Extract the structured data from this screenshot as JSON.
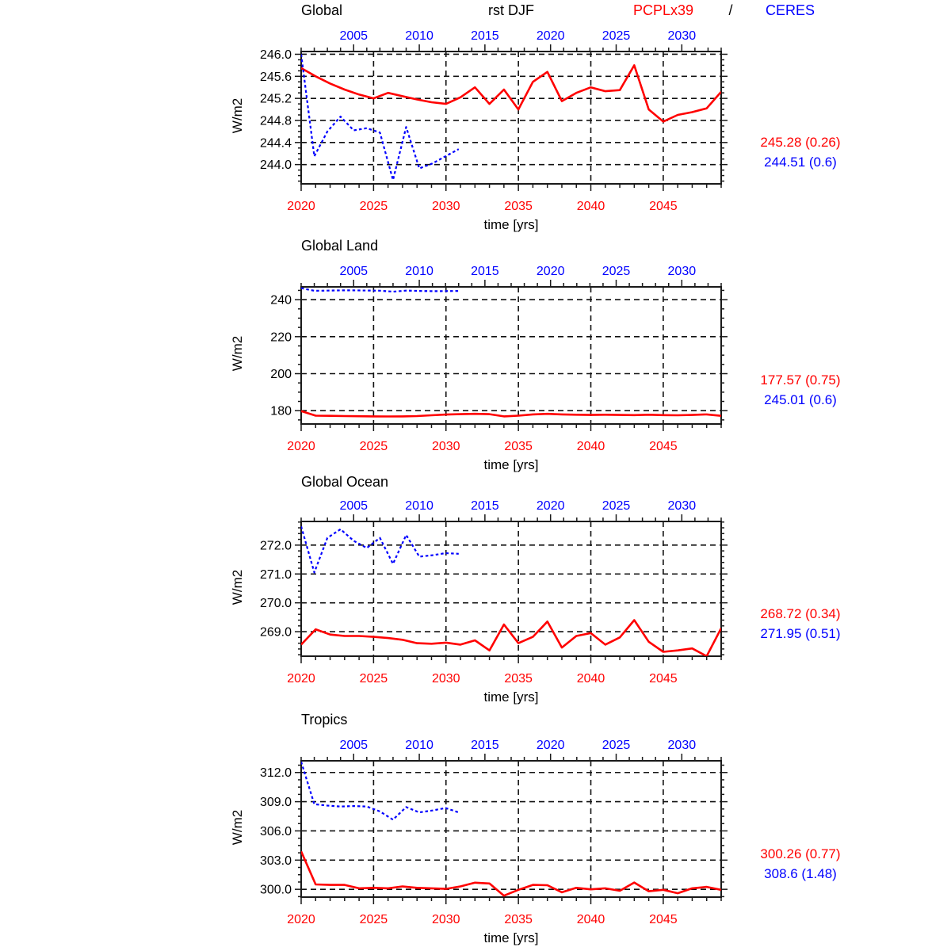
{
  "header": {
    "run_label": "rst DJF",
    "model_name": "PCPLx39",
    "separator": "/",
    "obs_name": "CERES"
  },
  "colors": {
    "model": "#ff0000",
    "obs": "#0000ff",
    "grid": "#111111",
    "frame": "#1a1a1a"
  },
  "axes": {
    "bottom": {
      "range": [
        2020,
        2049
      ],
      "major_ticks": [
        2020,
        2025,
        2030,
        2035,
        2040,
        2045
      ],
      "minor_step": 1,
      "label_color": "#ff0000",
      "label": "time [yrs]"
    },
    "top": {
      "range": [
        2001,
        2033
      ],
      "major_ticks": [
        2005,
        2010,
        2015,
        2020,
        2025,
        2030
      ],
      "minor_step": 1,
      "label_color": "#0000ff"
    }
  },
  "chart_data": [
    {
      "type": "line",
      "title": "Global",
      "ylabel": "W/m2",
      "xlabel": "time [yrs]",
      "ylim": [
        243.65,
        246.05
      ],
      "yticks": [
        246.0,
        245.6,
        245.2,
        244.8,
        244.4,
        244.0
      ],
      "ytick_decimals": 1,
      "y_minor_step": 0.1,
      "grid": true,
      "series": [
        {
          "name": "PCPLx39",
          "color": "#ff0000",
          "line_style": "solid",
          "x_axis": "bottom",
          "x_start": 2020,
          "x_step": 1,
          "values": [
            245.75,
            245.6,
            245.47,
            245.36,
            245.27,
            245.2,
            245.3,
            245.24,
            245.18,
            245.13,
            245.1,
            245.22,
            245.4,
            245.1,
            245.36,
            245.0,
            245.5,
            245.68,
            245.15,
            245.3,
            245.4,
            245.33,
            245.35,
            245.8,
            245.0,
            244.78,
            244.9,
            244.95,
            245.02,
            245.32
          ]
        },
        {
          "name": "CERES",
          "color": "#0000ff",
          "line_style": "dashed",
          "x_axis": "top",
          "x_start": 2001,
          "x_step": 1,
          "values": [
            246.0,
            244.15,
            244.6,
            244.87,
            244.62,
            244.66,
            244.58,
            243.72,
            244.68,
            243.93,
            244.02,
            244.15,
            244.28
          ]
        }
      ],
      "stats": {
        "model": "245.28 (0.26)",
        "obs": "244.51 (0.6)"
      }
    },
    {
      "type": "line",
      "title": "Global Land",
      "ylabel": "W/m2",
      "xlabel": "time [yrs]",
      "ylim": [
        172.8,
        246.9
      ],
      "yticks": [
        240,
        220,
        200,
        180
      ],
      "ytick_decimals": 0,
      "y_minor_step": 5,
      "grid": true,
      "series": [
        {
          "name": "PCPLx39",
          "color": "#ff0000",
          "line_style": "solid",
          "x_axis": "bottom",
          "x_start": 2020,
          "x_step": 1,
          "values": [
            179.8,
            177.3,
            177.2,
            177.1,
            177.0,
            176.9,
            176.85,
            176.9,
            177.1,
            177.5,
            177.9,
            178.1,
            178.3,
            178.1,
            176.9,
            177.3,
            178.0,
            178.3,
            178.0,
            177.8,
            177.7,
            177.8,
            177.7,
            177.6,
            177.8,
            177.6,
            177.5,
            177.7,
            178.0,
            177.2
          ]
        },
        {
          "name": "CERES",
          "color": "#0000ff",
          "line_style": "dashed",
          "x_axis": "top",
          "x_start": 2001,
          "x_step": 1,
          "values": [
            246.2,
            244.8,
            244.9,
            245.0,
            245.0,
            244.95,
            244.85,
            244.35,
            244.9,
            244.7,
            244.6,
            244.65,
            244.7
          ]
        }
      ],
      "stats": {
        "model": "177.57 (0.75)",
        "obs": "245.01 (0.6)"
      }
    },
    {
      "type": "line",
      "title": "Global Ocean",
      "ylabel": "W/m2",
      "xlabel": "time [yrs]",
      "ylim": [
        268.15,
        272.82
      ],
      "yticks": [
        272.0,
        271.0,
        270.0,
        269.0
      ],
      "ytick_decimals": 1,
      "y_minor_step": 0.2,
      "grid": true,
      "series": [
        {
          "name": "PCPLx39",
          "color": "#ff0000",
          "line_style": "solid",
          "x_axis": "bottom",
          "x_start": 2020,
          "x_step": 1,
          "values": [
            268.55,
            269.08,
            268.9,
            268.85,
            268.85,
            268.82,
            268.78,
            268.72,
            268.6,
            268.58,
            268.62,
            268.55,
            268.7,
            268.35,
            269.25,
            268.6,
            268.82,
            269.35,
            268.45,
            268.85,
            268.95,
            268.55,
            268.8,
            269.4,
            268.65,
            268.3,
            268.35,
            268.42,
            268.15,
            269.12
          ]
        },
        {
          "name": "CERES",
          "color": "#0000ff",
          "line_style": "dashed",
          "x_axis": "top",
          "x_start": 2001,
          "x_step": 1,
          "values": [
            272.65,
            271.05,
            272.25,
            272.55,
            272.15,
            271.9,
            272.25,
            271.35,
            272.35,
            271.6,
            271.65,
            271.72,
            271.7
          ]
        }
      ],
      "stats": {
        "model": "268.72 (0.34)",
        "obs": "271.95 (0.51)"
      }
    },
    {
      "type": "line",
      "title": "Tropics",
      "ylabel": "W/m2",
      "xlabel": "time [yrs]",
      "ylim": [
        299.2,
        313.2
      ],
      "yticks": [
        312.0,
        309.0,
        306.0,
        303.0,
        300.0
      ],
      "ytick_decimals": 1,
      "y_minor_step": 0.75,
      "grid": true,
      "series": [
        {
          "name": "PCPLx39",
          "color": "#ff0000",
          "line_style": "solid",
          "x_axis": "bottom",
          "x_start": 2020,
          "x_step": 1,
          "values": [
            303.9,
            300.5,
            300.45,
            300.45,
            300.1,
            300.15,
            300.1,
            300.3,
            300.15,
            300.1,
            300.05,
            300.3,
            300.68,
            300.6,
            299.35,
            299.95,
            300.45,
            300.42,
            299.7,
            300.15,
            300.0,
            300.1,
            299.85,
            300.7,
            299.8,
            299.95,
            299.6,
            300.1,
            300.25,
            299.95
          ]
        },
        {
          "name": "CERES",
          "color": "#0000ff",
          "line_style": "dashed",
          "x_axis": "top",
          "x_start": 2001,
          "x_step": 1,
          "values": [
            313.1,
            308.75,
            308.6,
            308.5,
            308.55,
            308.5,
            308.0,
            307.15,
            308.45,
            307.9,
            308.1,
            308.35,
            307.9
          ]
        }
      ],
      "stats": {
        "model": "300.26 (0.77)",
        "obs": "308.6 (1.48)"
      }
    }
  ]
}
